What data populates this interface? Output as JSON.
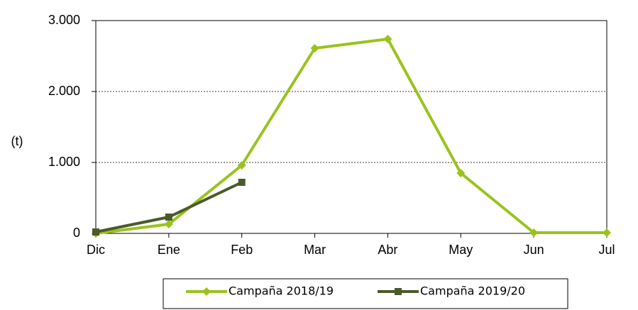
{
  "chart_data": {
    "type": "line",
    "ylabel": "(t)",
    "categories": [
      "Dic",
      "Ene",
      "Feb",
      "Mar",
      "Abr",
      "May",
      "Jun",
      "Jul"
    ],
    "series": [
      {
        "name": "Campaña 2018/19",
        "color": "#99c31c",
        "marker": "diamond",
        "values": [
          0,
          130,
          960,
          2610,
          2740,
          850,
          10,
          10
        ]
      },
      {
        "name": "Campaña 2019/20",
        "color": "#4b5a29",
        "marker": "square",
        "values": [
          20,
          230,
          720,
          null,
          null,
          null,
          null,
          null
        ]
      }
    ],
    "ylim": [
      0,
      3000
    ],
    "yticks": [
      0,
      {
        "value": 1000,
        "label": "1.000"
      },
      {
        "value": 2000,
        "label": "2.000"
      },
      {
        "value": 3000,
        "label": "3.000"
      }
    ],
    "grid": true,
    "legend": "bottom"
  }
}
